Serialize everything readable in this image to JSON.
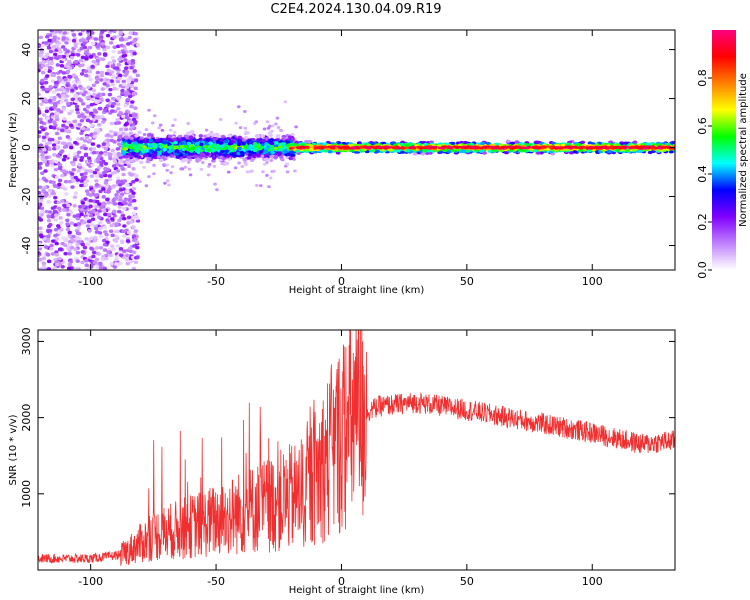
{
  "title": "C2E4.2024.130.04.09.R19",
  "chart_data": [
    {
      "type": "heatmap",
      "xlabel": "Height of straight line (km)",
      "ylabel": "Frequency (Hz)",
      "xlim": [
        -121,
        133
      ],
      "ylim": [
        -50,
        48
      ],
      "xticks": [
        -100,
        -50,
        0,
        50,
        100
      ],
      "yticks": [
        -40,
        -20,
        0,
        20,
        40
      ],
      "colorbar": {
        "label": "Normalized spectral amplitude",
        "range": [
          0,
          1
        ],
        "ticks": [
          "0.0",
          "0.2",
          "0.4",
          "0.6",
          "0.8"
        ],
        "colors": [
          "#ffffff",
          "#c080ff",
          "#8000ff",
          "#0000ff",
          "#00ffff",
          "#00ff00",
          "#ffff00",
          "#ff8000",
          "#ff0000",
          "#ff0080"
        ]
      },
      "regions": [
        {
          "x": [
            -121,
            -87
          ],
          "freq_spread": 50,
          "amplitude": 0.1,
          "note": "scattered"
        },
        {
          "x": [
            -87,
            -20
          ],
          "freq_spread": 5,
          "amplitude": 0.5
        },
        {
          "x": [
            -20,
            133
          ],
          "freq_spread": 1.5,
          "amplitude": 0.85
        }
      ]
    },
    {
      "type": "line",
      "xlabel": "Height of straight line (km)",
      "ylabel": "SNR (10 * v/v)",
      "xlim": [
        -121,
        133
      ],
      "ylim": [
        0,
        3150
      ],
      "xticks": [
        -100,
        -50,
        0,
        50,
        100
      ],
      "yticks": [
        1000,
        2000,
        3000
      ],
      "color": "#f03030",
      "envelope": [
        {
          "x": -121,
          "y": 150
        },
        {
          "x": -100,
          "y": 150
        },
        {
          "x": -88,
          "y": 200
        },
        {
          "x": -75,
          "y": 450
        },
        {
          "x": -50,
          "y": 650
        },
        {
          "x": -30,
          "y": 850
        },
        {
          "x": -15,
          "y": 1000
        },
        {
          "x": -5,
          "y": 1500
        },
        {
          "x": 5,
          "y": 2000
        },
        {
          "x": 15,
          "y": 2150
        },
        {
          "x": 30,
          "y": 2200
        },
        {
          "x": 50,
          "y": 2100
        },
        {
          "x": 75,
          "y": 1950
        },
        {
          "x": 100,
          "y": 1800
        },
        {
          "x": 120,
          "y": 1650
        },
        {
          "x": 133,
          "y": 1700
        }
      ]
    }
  ]
}
